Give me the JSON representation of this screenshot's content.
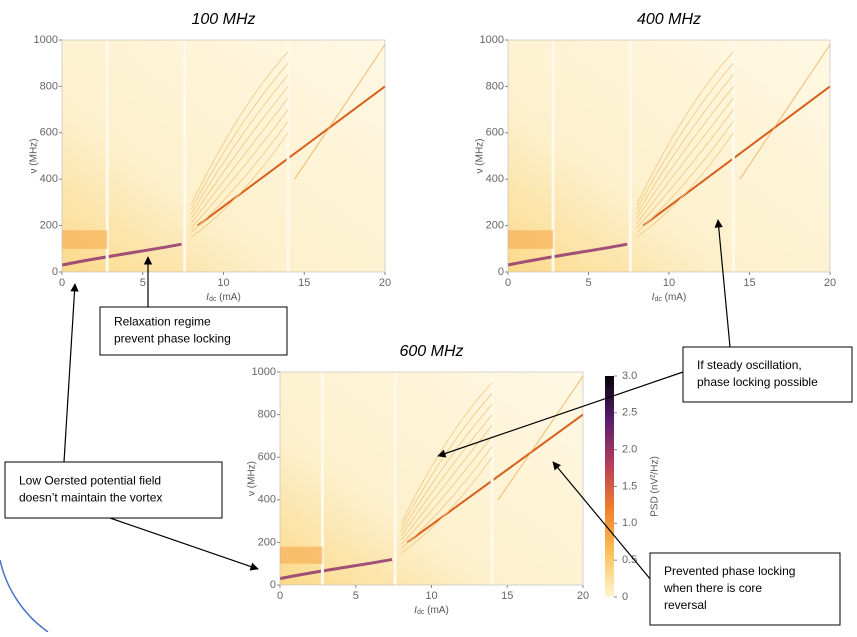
{
  "chart_data": [
    {
      "type": "heatmap",
      "title": "100 MHz",
      "xlabel": [
        "I",
        "dc",
        " (mA)"
      ],
      "ylabel": "ν (MHz)",
      "xlim": [
        0,
        20
      ],
      "ylim": [
        0,
        1000
      ],
      "xticks": [
        0,
        5,
        10,
        15,
        20
      ],
      "yticks": [
        0,
        200,
        400,
        600,
        800,
        1000
      ]
    },
    {
      "type": "heatmap",
      "title": "400 MHz",
      "xlabel": [
        "I",
        "dc",
        " (mA)"
      ],
      "ylabel": "ν (MHz)",
      "xlim": [
        0,
        20
      ],
      "ylim": [
        0,
        1000
      ],
      "xticks": [
        0,
        5,
        10,
        15,
        20
      ],
      "yticks": [
        0,
        200,
        400,
        600,
        800,
        1000
      ]
    },
    {
      "type": "heatmap",
      "title": "600 MHz",
      "xlabel": [
        "I",
        "dc",
        " (mA)"
      ],
      "ylabel": "ν (MHz)",
      "xlim": [
        0,
        20
      ],
      "ylim": [
        0,
        1000
      ],
      "xticks": [
        0,
        5,
        10,
        15,
        20
      ],
      "yticks": [
        0,
        200,
        400,
        600,
        800,
        1000
      ],
      "colorbar": {
        "label": "PSD (nV²/Hz)",
        "clim": [
          0,
          3
        ],
        "ticks": [
          0,
          0.5,
          {
            "value": 1,
            "label": "1.0"
          },
          1.5,
          {
            "value": 2,
            "label": "2.0"
          },
          2.5,
          {
            "value": 3,
            "label": "3.0"
          }
        ]
      }
    }
  ],
  "annotations": [
    {
      "lines": [
        "Relaxation regime",
        "prevent phase locking"
      ]
    },
    {
      "lines": [
        "If steady oscillation,",
        "phase locking possible"
      ]
    },
    {
      "lines": [
        "Low Oersted potential field",
        "doesn’t maintain the vortex"
      ]
    },
    {
      "lines": [
        "Prevented phase locking",
        "when there is core",
        "reversal"
      ]
    }
  ]
}
